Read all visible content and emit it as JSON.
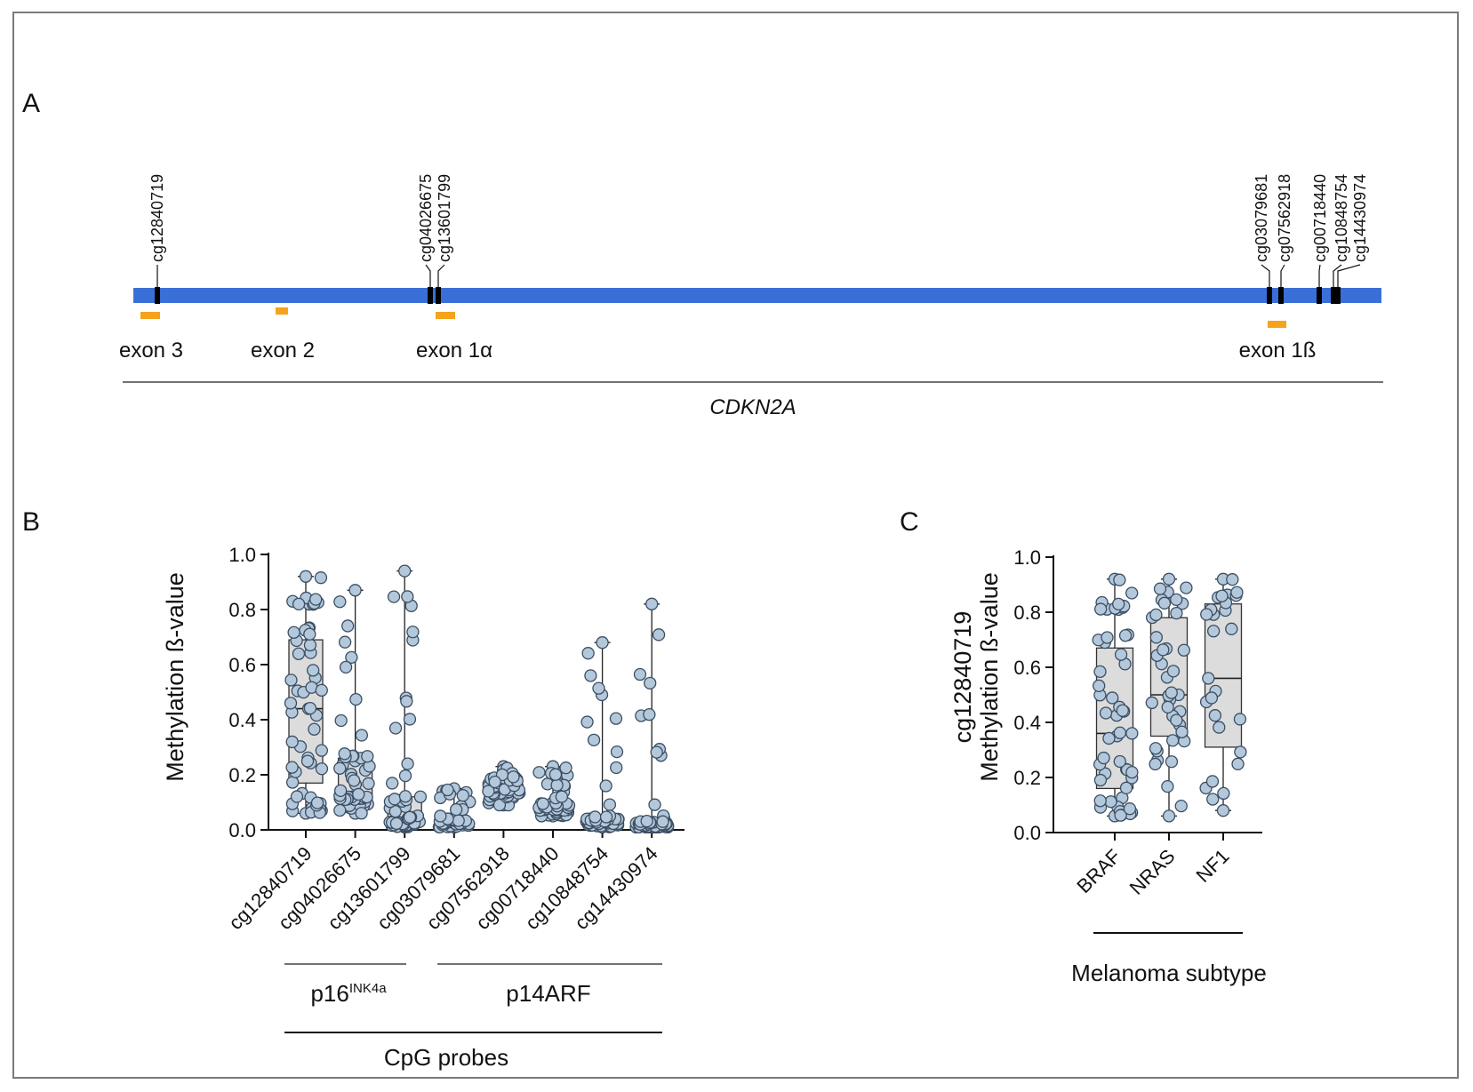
{
  "panels": {
    "a": {
      "letter": "A"
    },
    "b": {
      "letter": "B"
    },
    "c": {
      "letter": "C"
    }
  },
  "gene_map": {
    "gene": "CDKN2A",
    "bar_color": "#3a6fd8",
    "probe_color": "#000000",
    "exon_color": "#f5a31a",
    "exons": [
      "exon 3",
      "exon 2",
      "exon 1α",
      "exon 1ß"
    ],
    "probes": [
      "cg12840719",
      "cg04026675",
      "cg13601799",
      "cg03079681",
      "cg07562918",
      "cg00718440",
      "cg10848754",
      "cg14430974"
    ]
  },
  "colors": {
    "box_fill": "#dcdcdc",
    "point_fill": "#b4c8dc",
    "point_stroke": "#3c4e62"
  },
  "chart_data": [
    {
      "type": "box",
      "ylabel": "Methylation ß-value",
      "ylim": [
        0,
        1.0
      ],
      "yticks": [
        "0.0",
        "0.2",
        "0.4",
        "0.6",
        "0.8",
        "1.0"
      ],
      "categories": [
        "cg12840719",
        "cg04026675",
        "cg13601799",
        "cg03079681",
        "cg07562918",
        "cg00718440",
        "cg10848754",
        "cg14430974"
      ],
      "groups": [
        {
          "label_main": "p16",
          "label_sup": "INK4a",
          "members": [
            "cg12840719",
            "cg04026675",
            "cg13601799"
          ]
        },
        {
          "label_main": "p14ARF",
          "label_sup": "",
          "members": [
            "cg03079681",
            "cg07562918",
            "cg00718440",
            "cg10848754",
            "cg14430974"
          ]
        }
      ],
      "xlabel": "CpG probes",
      "boxes": [
        {
          "min": 0.06,
          "q1": 0.17,
          "median": 0.44,
          "q3": 0.69,
          "max": 0.92,
          "n": 56
        },
        {
          "min": 0.06,
          "q1": 0.11,
          "median": 0.12,
          "q3": 0.26,
          "max": 0.87,
          "n": 56
        },
        {
          "min": 0.01,
          "q1": 0.02,
          "median": 0.03,
          "q3": 0.12,
          "max": 0.94,
          "n": 56
        },
        {
          "min": 0.01,
          "q1": 0.02,
          "median": 0.03,
          "q3": 0.04,
          "max": 0.15,
          "n": 56
        },
        {
          "min": 0.09,
          "q1": 0.12,
          "median": 0.14,
          "q3": 0.17,
          "max": 0.23,
          "n": 56
        },
        {
          "min": 0.05,
          "q1": 0.07,
          "median": 0.08,
          "q3": 0.1,
          "max": 0.23,
          "n": 56
        },
        {
          "min": 0.01,
          "q1": 0.02,
          "median": 0.03,
          "q3": 0.04,
          "max": 0.68,
          "n": 56
        },
        {
          "min": 0.01,
          "q1": 0.01,
          "median": 0.02,
          "q3": 0.03,
          "max": 0.82,
          "n": 56
        }
      ]
    },
    {
      "type": "box",
      "ylabel_line1": "cg12840719",
      "ylabel_line2": "Methylation ß-value",
      "ylim": [
        0,
        1.0
      ],
      "yticks": [
        "0.0",
        "0.2",
        "0.4",
        "0.6",
        "0.8",
        "1.0"
      ],
      "categories": [
        "BRAF",
        "NRAS",
        "NF1"
      ],
      "xlabel": "Melanoma subtype",
      "boxes": [
        {
          "min": 0.06,
          "q1": 0.16,
          "median": 0.36,
          "q3": 0.67,
          "max": 0.92,
          "n": 54
        },
        {
          "min": 0.06,
          "q1": 0.35,
          "median": 0.5,
          "q3": 0.78,
          "max": 0.92,
          "n": 40
        },
        {
          "min": 0.08,
          "q1": 0.31,
          "median": 0.56,
          "q3": 0.83,
          "max": 0.92,
          "n": 28
        }
      ]
    }
  ]
}
